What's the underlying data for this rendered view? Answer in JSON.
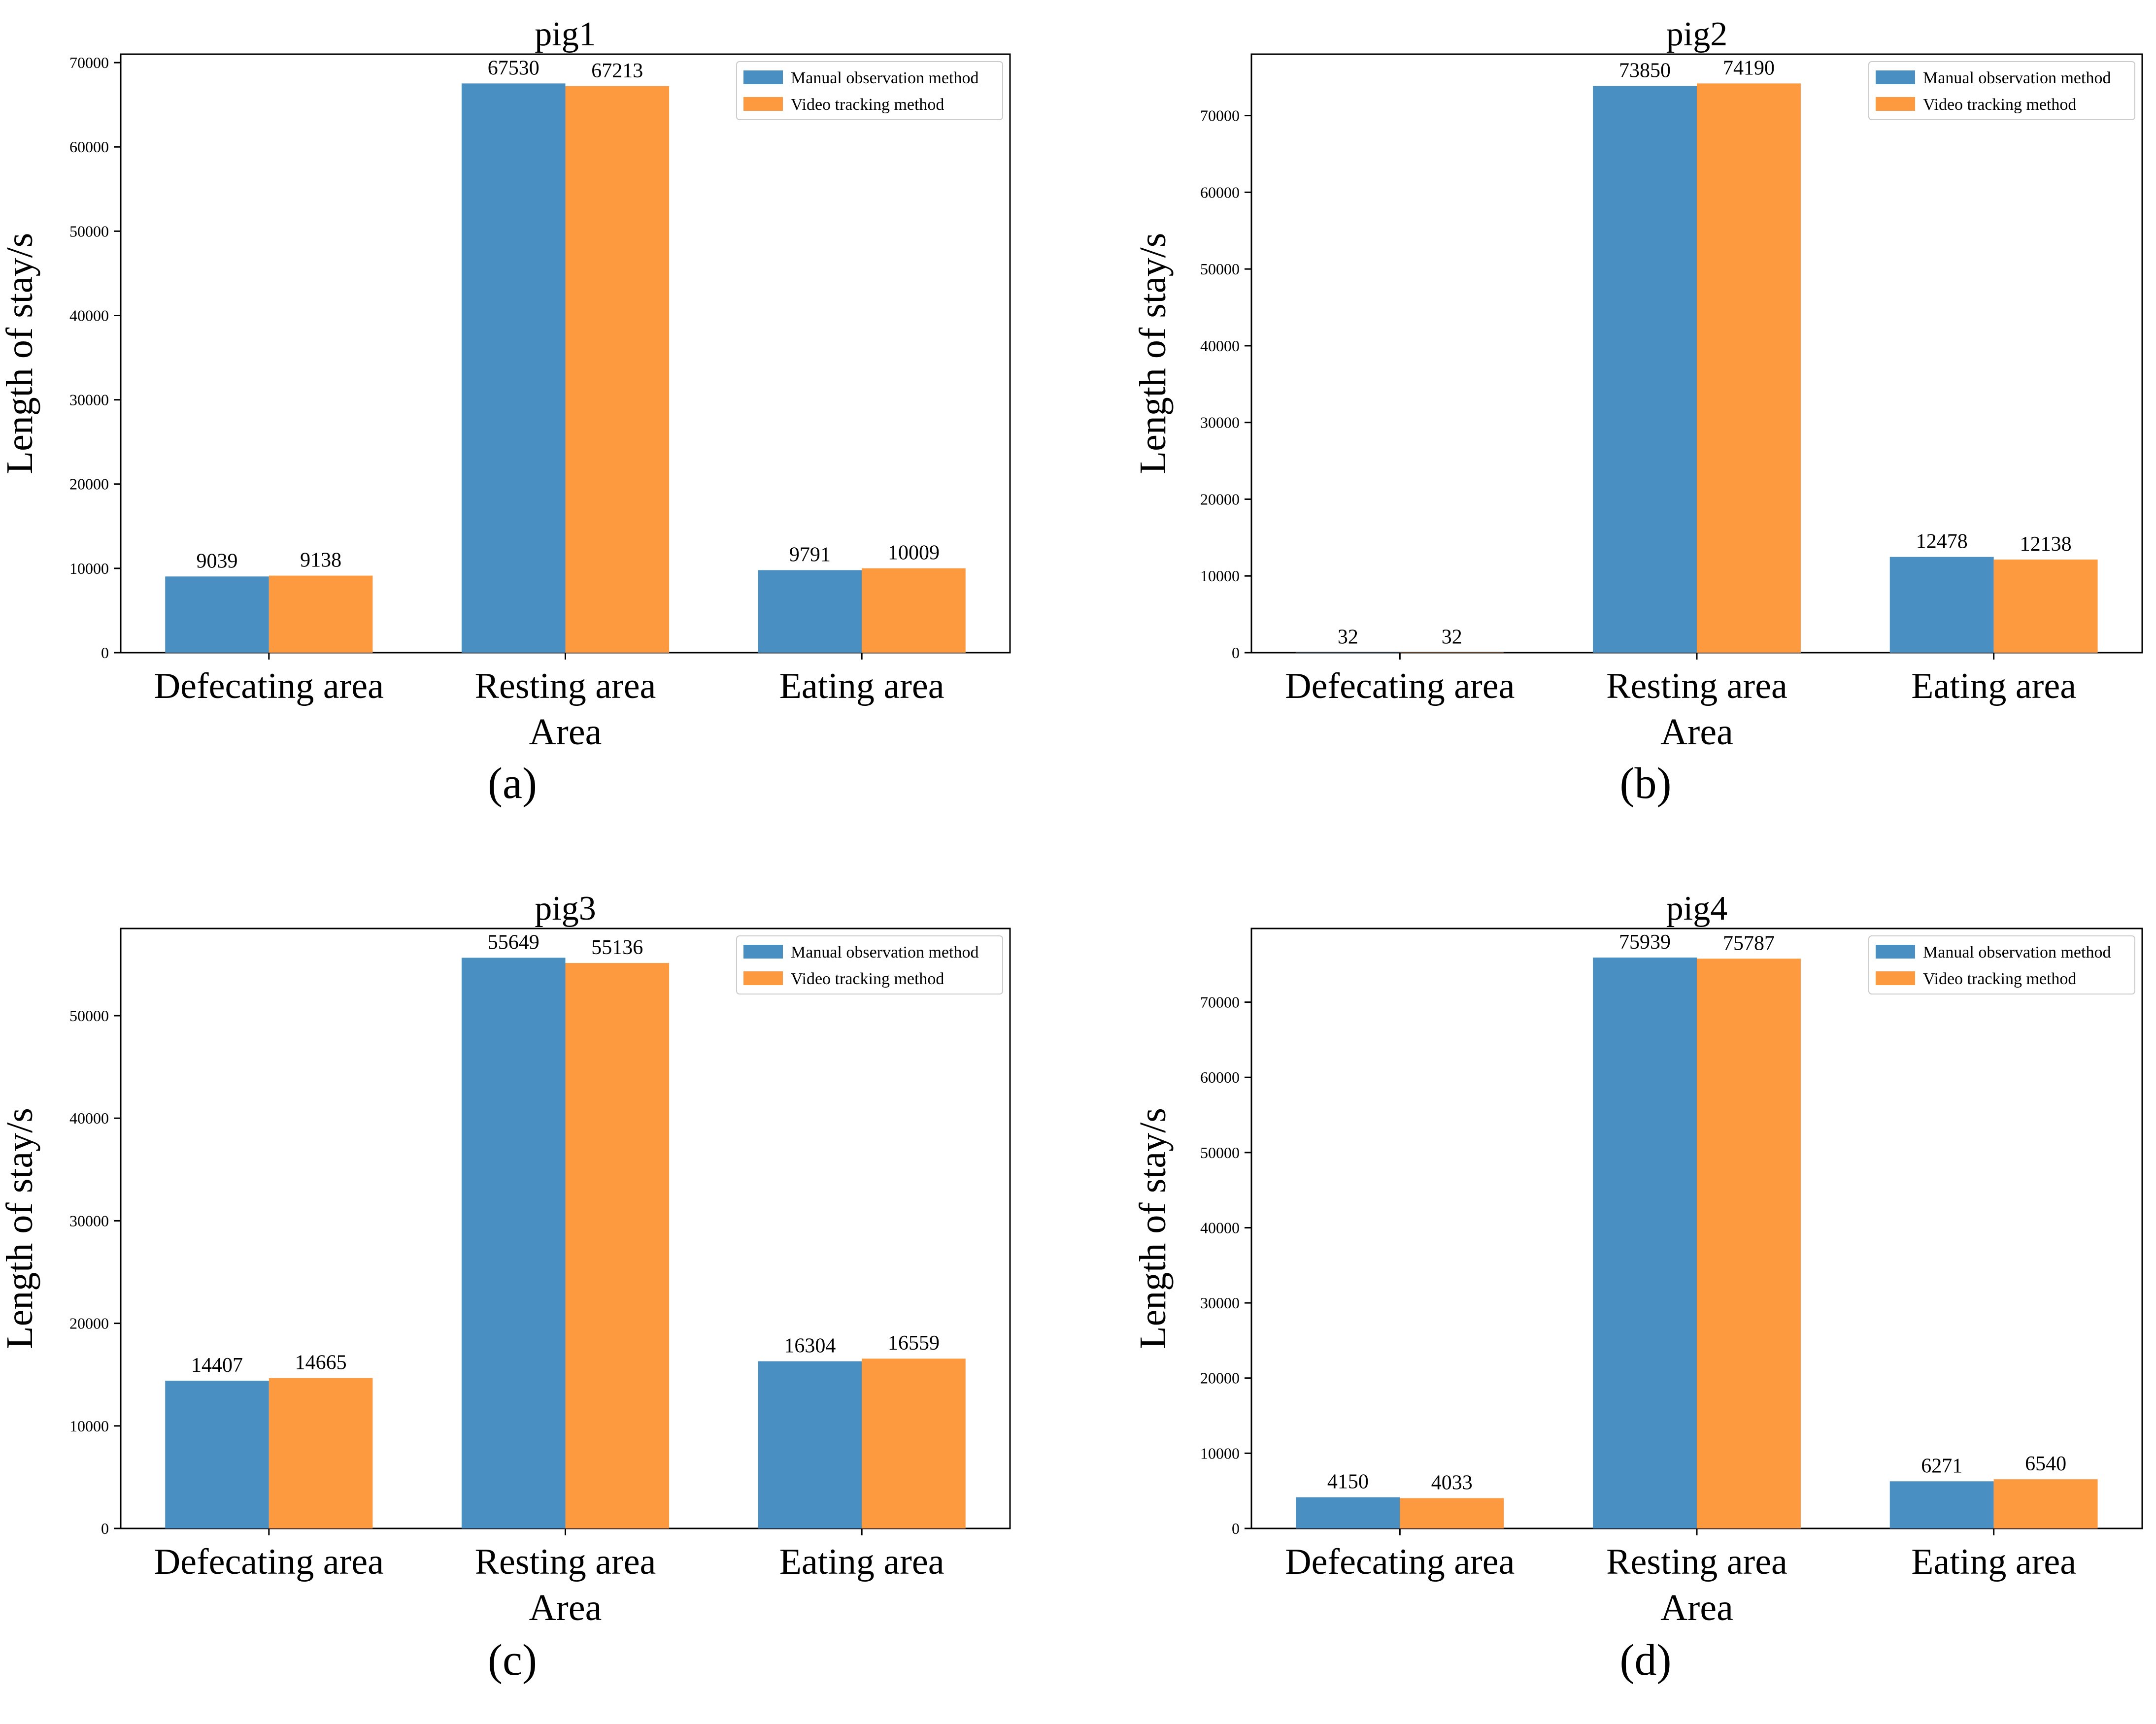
{
  "colors": {
    "manual": "#4a8fc1",
    "video": "#fd9a3f",
    "axis": "#000000"
  },
  "legend": [
    "Manual observation method",
    "Video tracking method"
  ],
  "chart_data": [
    {
      "type": "bar",
      "title": "pig1",
      "caption": "(a)",
      "xlabel": "Area",
      "ylabel": "Length of stay/s",
      "categories": [
        "Defecating area",
        "Resting area",
        "Eating area"
      ],
      "series": [
        {
          "name": "Manual observation method",
          "values": [
            9039,
            67530,
            9791
          ]
        },
        {
          "name": "Video tracking method",
          "values": [
            9138,
            67213,
            10009
          ]
        }
      ],
      "ylim": [
        0,
        71000
      ],
      "yticks": [
        0,
        10000,
        20000,
        30000,
        40000,
        50000,
        60000,
        70000
      ],
      "legend_position": "top-right",
      "grid": false
    },
    {
      "type": "bar",
      "title": "pig2",
      "caption": "(b)",
      "xlabel": "Area",
      "ylabel": "Length of stay/s",
      "categories": [
        "Defecating area",
        "Resting area",
        "Eating area"
      ],
      "series": [
        {
          "name": "Manual observation method",
          "values": [
            32,
            73850,
            12478
          ]
        },
        {
          "name": "Video tracking method",
          "values": [
            32,
            74190,
            12138
          ]
        }
      ],
      "ylim": [
        0,
        78000
      ],
      "yticks": [
        0,
        10000,
        20000,
        30000,
        40000,
        50000,
        60000,
        70000
      ],
      "legend_position": "top-right",
      "grid": false
    },
    {
      "type": "bar",
      "title": "pig3",
      "caption": "(c)",
      "xlabel": "Area",
      "ylabel": "Length of stay/s",
      "categories": [
        "Defecating area",
        "Resting area",
        "Eating area"
      ],
      "series": [
        {
          "name": "Manual observation method",
          "values": [
            14407,
            55649,
            16304
          ]
        },
        {
          "name": "Video tracking method",
          "values": [
            14665,
            55136,
            16559
          ]
        }
      ],
      "ylim": [
        0,
        58500
      ],
      "yticks": [
        0,
        10000,
        20000,
        30000,
        40000,
        50000
      ],
      "legend_position": "top-right",
      "grid": false
    },
    {
      "type": "bar",
      "title": "pig4",
      "caption": "(d)",
      "xlabel": "Area",
      "ylabel": "Length of stay/s",
      "categories": [
        "Defecating area",
        "Resting area",
        "Eating area"
      ],
      "series": [
        {
          "name": "Manual observation method",
          "values": [
            4150,
            75939,
            6271
          ]
        },
        {
          "name": "Video tracking method",
          "values": [
            4033,
            75787,
            6540
          ]
        }
      ],
      "ylim": [
        0,
        79800
      ],
      "yticks": [
        0,
        10000,
        20000,
        30000,
        40000,
        50000,
        60000,
        70000
      ],
      "legend_position": "top-right",
      "grid": false
    }
  ]
}
